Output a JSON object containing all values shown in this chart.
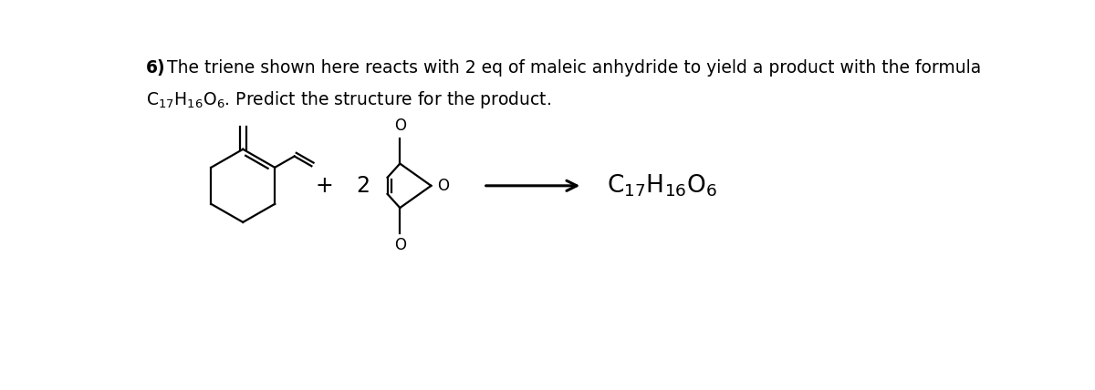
{
  "bg_color": "#ffffff",
  "title_line1": " The triene shown here reacts with 2 eq of maleic anhydride to yield a product with the formula",
  "title_bold_prefix": "6)",
  "title_line2_formula": "C₁₇H₁₆O₆",
  "title_line2_end": ". Predict the structure for the product.",
  "plus_text": "+",
  "two_text": "2",
  "arrow_color": "#000000",
  "line_color": "#000000",
  "font_size_title": 13.5,
  "font_size_eq": 15,
  "font_size_formula": 16
}
